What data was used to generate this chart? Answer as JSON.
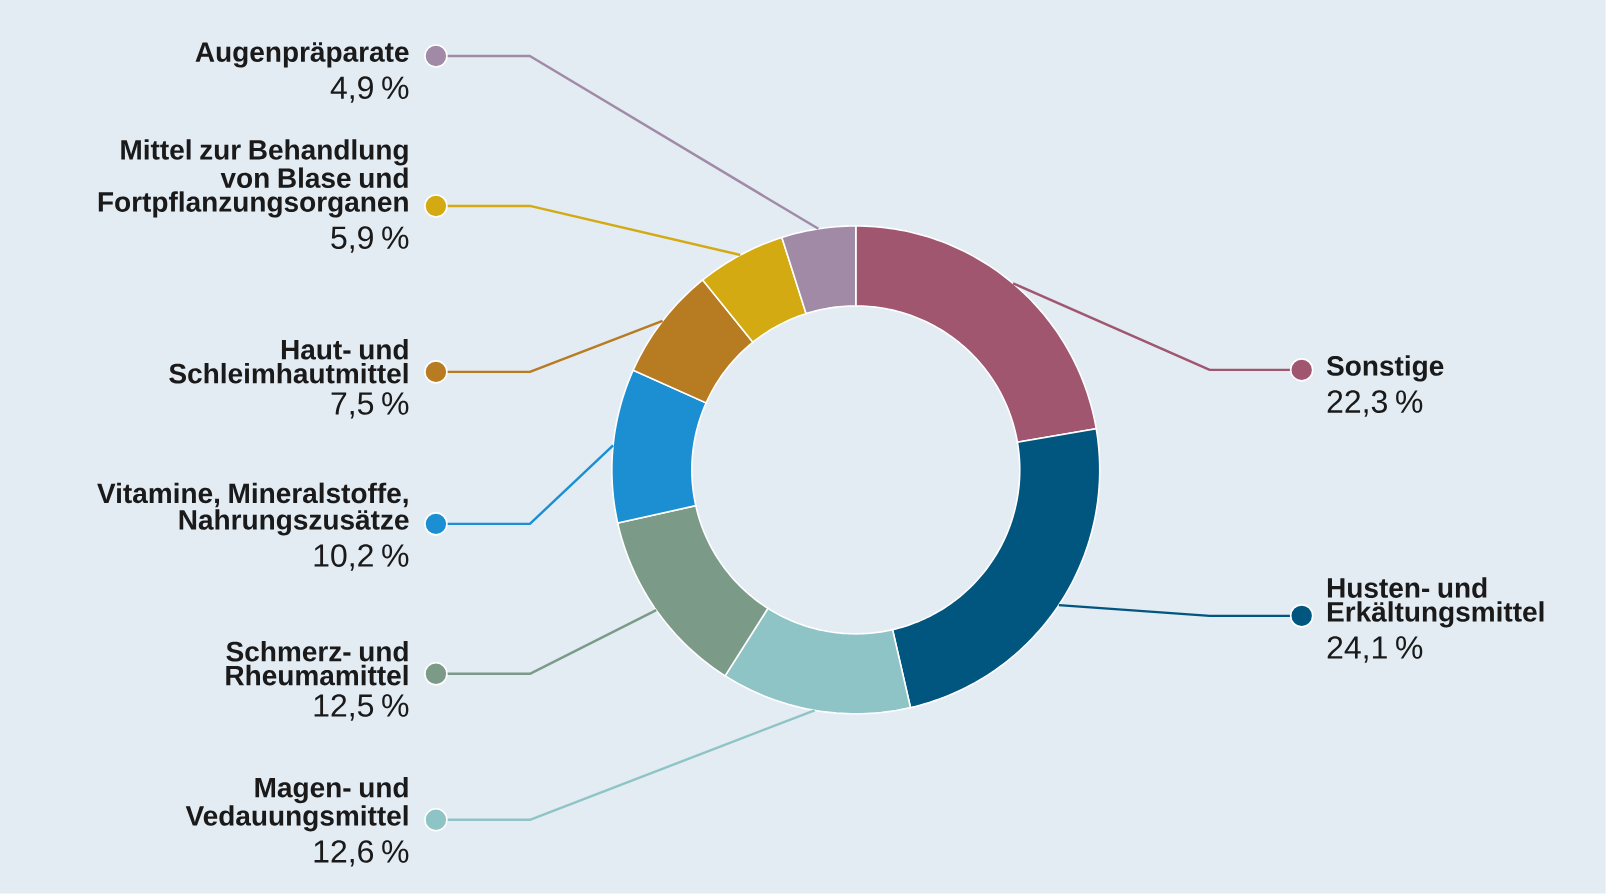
{
  "chart_data": {
    "type": "donut",
    "legend": "left",
    "categories": [
      "Sonstige",
      "Husten- und Erkältungsmittel",
      "Magen- und Vedauungsmittel",
      "Schmerz- und Rheumamittel",
      "Vitamine, Mineralstoffe, Nahrungszusätze",
      "Haut- und Schleimhautmittel",
      "Mittel zur Behandlung von Blase und Fortpflanzungsorganen",
      "Augenpräparate"
    ],
    "values": [
      22.3,
      24.1,
      12.6,
      12.5,
      10.2,
      7.5,
      5.9,
      4.9
    ],
    "colors": [
      "#a0566f",
      "#00567f",
      "#8fc4c7",
      "#7b9b88",
      "#1b8fd2",
      "#b77b22",
      "#d3aa12",
      "#a08aa6"
    ],
    "value_labels": [
      "22,3 %",
      "24,1 %",
      "12,6 %",
      "12,5 %",
      "10,2 %",
      "7,5 %",
      "5,9 %",
      "4,9 %"
    ]
  }
}
